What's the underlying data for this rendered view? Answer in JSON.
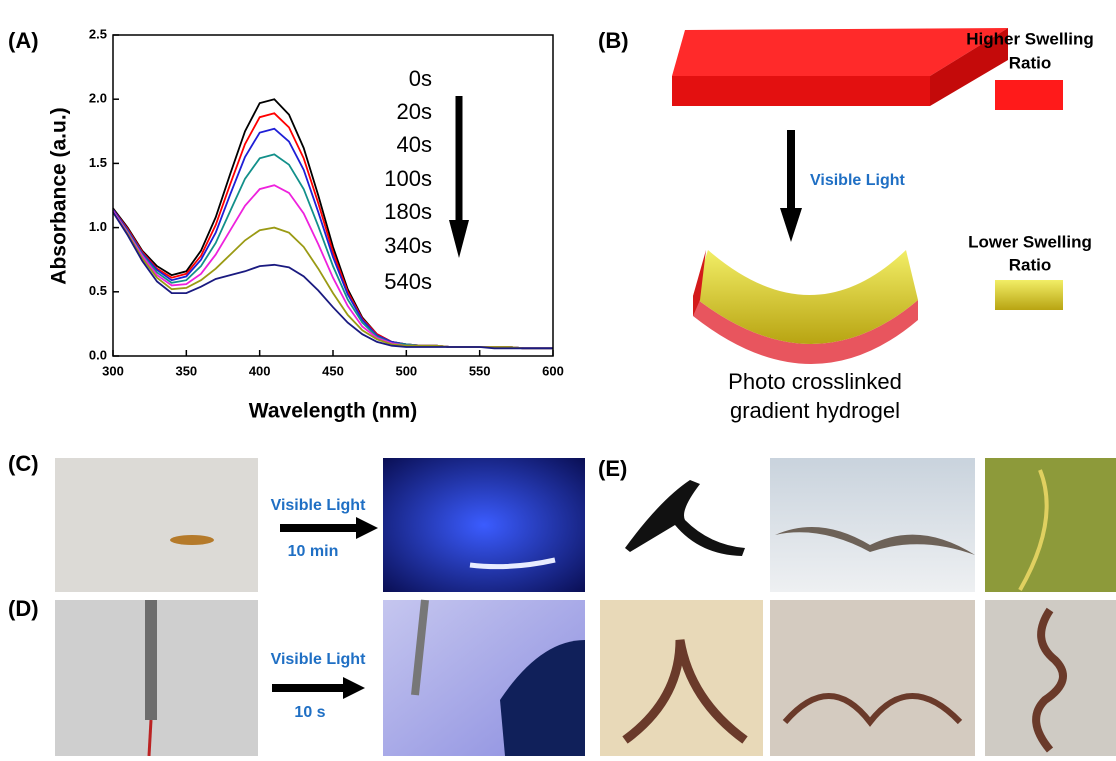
{
  "chart_data": {
    "type": "line",
    "x_label": "Wavelength (nm)",
    "y_label": "Absorbance (a.u.)",
    "x": [
      300,
      310,
      320,
      330,
      340,
      350,
      360,
      370,
      380,
      390,
      400,
      410,
      420,
      430,
      440,
      450,
      460,
      470,
      480,
      490,
      500,
      510,
      520,
      530,
      540,
      550,
      560,
      570,
      580,
      590,
      600
    ],
    "series": [
      {
        "name": "0s",
        "color": "#000000",
        "values": [
          1.15,
          1.0,
          0.82,
          0.7,
          0.63,
          0.66,
          0.82,
          1.08,
          1.42,
          1.75,
          1.97,
          2.0,
          1.88,
          1.62,
          1.25,
          0.85,
          0.52,
          0.3,
          0.17,
          0.11,
          0.09,
          0.08,
          0.08,
          0.07,
          0.07,
          0.07,
          0.07,
          0.07,
          0.06,
          0.06,
          0.06
        ]
      },
      {
        "name": "20s",
        "color": "#ff0000",
        "values": [
          1.14,
          0.99,
          0.81,
          0.68,
          0.61,
          0.64,
          0.78,
          1.02,
          1.34,
          1.65,
          1.86,
          1.89,
          1.78,
          1.54,
          1.19,
          0.81,
          0.5,
          0.29,
          0.17,
          0.11,
          0.09,
          0.08,
          0.08,
          0.07,
          0.07,
          0.07,
          0.07,
          0.07,
          0.06,
          0.06,
          0.06
        ]
      },
      {
        "name": "40s",
        "color": "#1f1fd6",
        "values": [
          1.14,
          0.98,
          0.8,
          0.67,
          0.59,
          0.62,
          0.75,
          0.96,
          1.26,
          1.55,
          1.74,
          1.77,
          1.67,
          1.45,
          1.12,
          0.77,
          0.48,
          0.28,
          0.16,
          0.11,
          0.09,
          0.08,
          0.08,
          0.07,
          0.07,
          0.07,
          0.07,
          0.07,
          0.06,
          0.06,
          0.06
        ]
      },
      {
        "name": "100s",
        "color": "#12908a",
        "values": [
          1.13,
          0.97,
          0.79,
          0.65,
          0.57,
          0.59,
          0.7,
          0.88,
          1.13,
          1.38,
          1.54,
          1.57,
          1.49,
          1.3,
          1.01,
          0.7,
          0.44,
          0.26,
          0.15,
          0.1,
          0.09,
          0.08,
          0.08,
          0.07,
          0.07,
          0.07,
          0.07,
          0.07,
          0.06,
          0.06,
          0.06
        ]
      },
      {
        "name": "180s",
        "color": "#ee22dd",
        "values": [
          1.13,
          0.96,
          0.78,
          0.63,
          0.55,
          0.56,
          0.64,
          0.79,
          0.98,
          1.17,
          1.3,
          1.33,
          1.27,
          1.11,
          0.87,
          0.61,
          0.39,
          0.23,
          0.14,
          0.1,
          0.08,
          0.08,
          0.08,
          0.07,
          0.07,
          0.07,
          0.07,
          0.07,
          0.06,
          0.06,
          0.06
        ]
      },
      {
        "name": "340s",
        "color": "#9a9a14",
        "values": [
          1.12,
          0.95,
          0.76,
          0.61,
          0.52,
          0.53,
          0.59,
          0.68,
          0.79,
          0.9,
          0.98,
          1.0,
          0.96,
          0.85,
          0.68,
          0.49,
          0.32,
          0.2,
          0.13,
          0.09,
          0.08,
          0.08,
          0.08,
          0.07,
          0.07,
          0.07,
          0.07,
          0.07,
          0.06,
          0.06,
          0.06
        ]
      },
      {
        "name": "540s",
        "color": "#1a1a80",
        "values": [
          1.12,
          0.94,
          0.74,
          0.58,
          0.49,
          0.49,
          0.54,
          0.6,
          0.63,
          0.66,
          0.7,
          0.71,
          0.69,
          0.62,
          0.51,
          0.38,
          0.26,
          0.17,
          0.11,
          0.08,
          0.07,
          0.07,
          0.07,
          0.07,
          0.07,
          0.07,
          0.06,
          0.06,
          0.06,
          0.06,
          0.06
        ]
      }
    ],
    "xlim": [
      300,
      600
    ],
    "xticks": [
      300,
      350,
      400,
      450,
      500,
      550,
      600
    ],
    "ylim": [
      0,
      2.5
    ],
    "yticks": [
      {
        "value": 0,
        "label": "0.0"
      },
      0.5,
      {
        "value": 1,
        "label": "1.0"
      },
      1.5,
      {
        "value": 2,
        "label": "2.0"
      },
      2.5
    ]
  },
  "figure": {
    "panel_a": {
      "label": "(A)"
    },
    "panel_b": {
      "label": "(B)",
      "higher": [
        "Higher Swelling",
        "Ratio"
      ],
      "light": "Visible Light",
      "lower": [
        "Lower Swelling",
        "Ratio"
      ],
      "caption": [
        "Photo crosslinked",
        "gradient hydrogel"
      ]
    },
    "panel_c": {
      "label": "(C)",
      "light": "Visible Light",
      "time": "10 min"
    },
    "panel_d": {
      "label": "(D)",
      "light": "Visible Light",
      "time": "10 s"
    },
    "panel_e": {
      "label": "(E)"
    }
  }
}
